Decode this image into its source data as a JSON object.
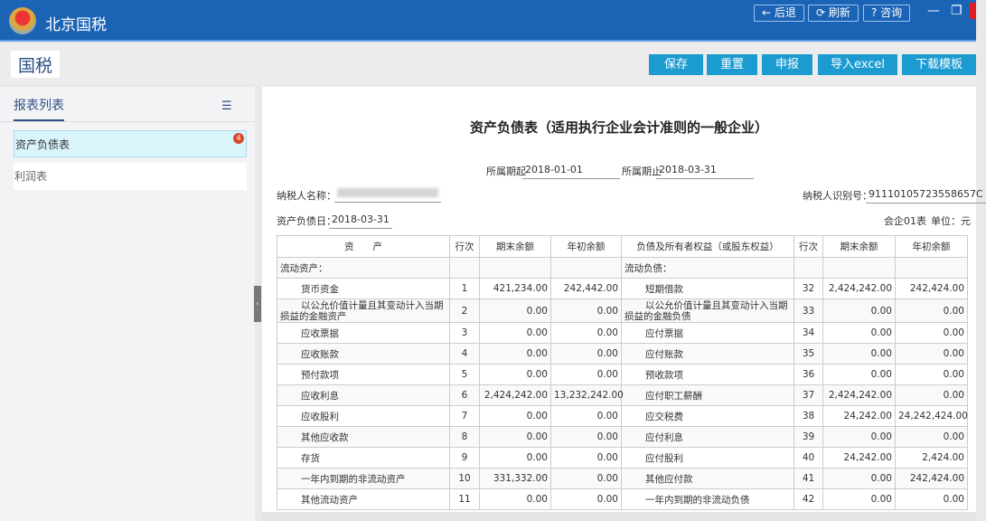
{
  "app": {
    "title": "北京国税",
    "brand": "国税"
  },
  "nav": {
    "back": "← 后退",
    "refresh": "⟳ 刷新",
    "help": "? 咨询",
    "minimize": "—",
    "restore": "❐"
  },
  "toolbar": {
    "save": "保存",
    "reset": "重置",
    "declare": "申报",
    "import": "导入excel",
    "download": "下载模板"
  },
  "sidebar": {
    "heading": "报表列表",
    "items": [
      {
        "label": "资产负债表",
        "badge": "4",
        "active": true
      },
      {
        "label": "利润表"
      }
    ]
  },
  "form": {
    "title": "资产负债表（适用执行企业会计准则的一般企业）",
    "period_start_label": "所属期起",
    "period_start": "2018-01-01",
    "period_end_label": "所属期止",
    "period_end": "2018-03-31",
    "taxpayer_name_label": "纳税人名称：",
    "taxpayer_name": "",
    "taxpayer_id_label": "纳税人识别号：",
    "taxpayer_id": "91110105723558657C",
    "date_label": "资产负债日：",
    "date": "2018-03-31",
    "form_code": "会企01表",
    "unit": "单位：元"
  },
  "table": {
    "headers": [
      "资　　产",
      "行次",
      "期末余额",
      "年初余额",
      "负债及所有者权益（或股东权益）",
      "行次",
      "期末余额",
      "年初余额"
    ],
    "rows": [
      [
        "流动资产：",
        "",
        "",
        "",
        "流动负债：",
        "",
        "",
        ""
      ],
      [
        "货币资金",
        "1",
        "421,234.00",
        "242,442.00",
        "短期借款",
        "32",
        "2,424,242.00",
        "242,424.00"
      ],
      [
        "以公允价值计量且其变动计入当期损益的金融资产",
        "2",
        "0.00",
        "0.00",
        "以公允价值计量且其变动计入当期损益的金融负债",
        "33",
        "0.00",
        "0.00"
      ],
      [
        "应收票据",
        "3",
        "0.00",
        "0.00",
        "应付票据",
        "34",
        "0.00",
        "0.00"
      ],
      [
        "应收账款",
        "4",
        "0.00",
        "0.00",
        "应付账款",
        "35",
        "0.00",
        "0.00"
      ],
      [
        "预付款项",
        "5",
        "0.00",
        "0.00",
        "预收款项",
        "36",
        "0.00",
        "0.00"
      ],
      [
        "应收利息",
        "6",
        "2,424,242.00",
        "13,232,242.00",
        "应付职工薪酬",
        "37",
        "2,424,242.00",
        "0.00"
      ],
      [
        "应收股利",
        "7",
        "0.00",
        "0.00",
        "应交税费",
        "38",
        "24,242.00",
        "24,242,424.00"
      ],
      [
        "其他应收款",
        "8",
        "0.00",
        "0.00",
        "应付利息",
        "39",
        "0.00",
        "0.00"
      ],
      [
        "存货",
        "9",
        "0.00",
        "0.00",
        "应付股利",
        "40",
        "24,242.00",
        "2,424.00"
      ],
      [
        "一年内到期的非流动资产",
        "10",
        "331,332.00",
        "0.00",
        "其他应付款",
        "41",
        "0.00",
        "242,424.00"
      ],
      [
        "其他流动资产",
        "11",
        "0.00",
        "0.00",
        "一年内到期的非流动负债",
        "42",
        "0.00",
        "0.00"
      ]
    ]
  },
  "colors": {
    "header": "#1a63b5",
    "button": "#1c9bd0",
    "active_item": "#d9f4fb",
    "badge": "#d9482b"
  }
}
